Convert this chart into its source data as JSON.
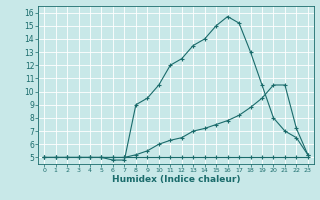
{
  "title": "",
  "xlabel": "Humidex (Indice chaleur)",
  "bg_color": "#c8e8e8",
  "grid_color": "#ffffff",
  "line_color": "#1a6b6b",
  "xlim": [
    -0.5,
    23.5
  ],
  "ylim": [
    4.5,
    16.5
  ],
  "xticks": [
    0,
    1,
    2,
    3,
    4,
    5,
    6,
    7,
    8,
    9,
    10,
    11,
    12,
    13,
    14,
    15,
    16,
    17,
    18,
    19,
    20,
    21,
    22,
    23
  ],
  "yticks": [
    5,
    6,
    7,
    8,
    9,
    10,
    11,
    12,
    13,
    14,
    15,
    16
  ],
  "line1_x": [
    0,
    1,
    2,
    3,
    4,
    5,
    6,
    7,
    8,
    9,
    10,
    11,
    12,
    13,
    14,
    15,
    16,
    17,
    18,
    19,
    20,
    21,
    22,
    23
  ],
  "line1_y": [
    5,
    5,
    5,
    5,
    5,
    5,
    5,
    5,
    5,
    5,
    5,
    5,
    5,
    5,
    5,
    5,
    5,
    5,
    5,
    5,
    5,
    5,
    5,
    5
  ],
  "line2_x": [
    0,
    1,
    2,
    3,
    4,
    5,
    6,
    7,
    8,
    9,
    10,
    11,
    12,
    13,
    14,
    15,
    16,
    17,
    18,
    19,
    20,
    21,
    22,
    23
  ],
  "line2_y": [
    5,
    5,
    5,
    5,
    5,
    5,
    5,
    5,
    5.2,
    5.5,
    6.0,
    6.3,
    6.5,
    7.0,
    7.2,
    7.5,
    7.8,
    8.2,
    8.8,
    9.5,
    10.5,
    10.5,
    7.2,
    5.2
  ],
  "line3_x": [
    0,
    1,
    2,
    3,
    4,
    5,
    6,
    7,
    8,
    9,
    10,
    11,
    12,
    13,
    14,
    15,
    16,
    17,
    18,
    19,
    20,
    21,
    22,
    23
  ],
  "line3_y": [
    5,
    5,
    5,
    5,
    5,
    5,
    4.8,
    4.8,
    9.0,
    9.5,
    10.5,
    12.0,
    12.5,
    13.5,
    14.0,
    15.0,
    15.7,
    15.2,
    13.0,
    10.5,
    8.0,
    7.0,
    6.5,
    5.2
  ],
  "marker": "+",
  "markersize": 3.5,
  "linewidth": 0.8
}
